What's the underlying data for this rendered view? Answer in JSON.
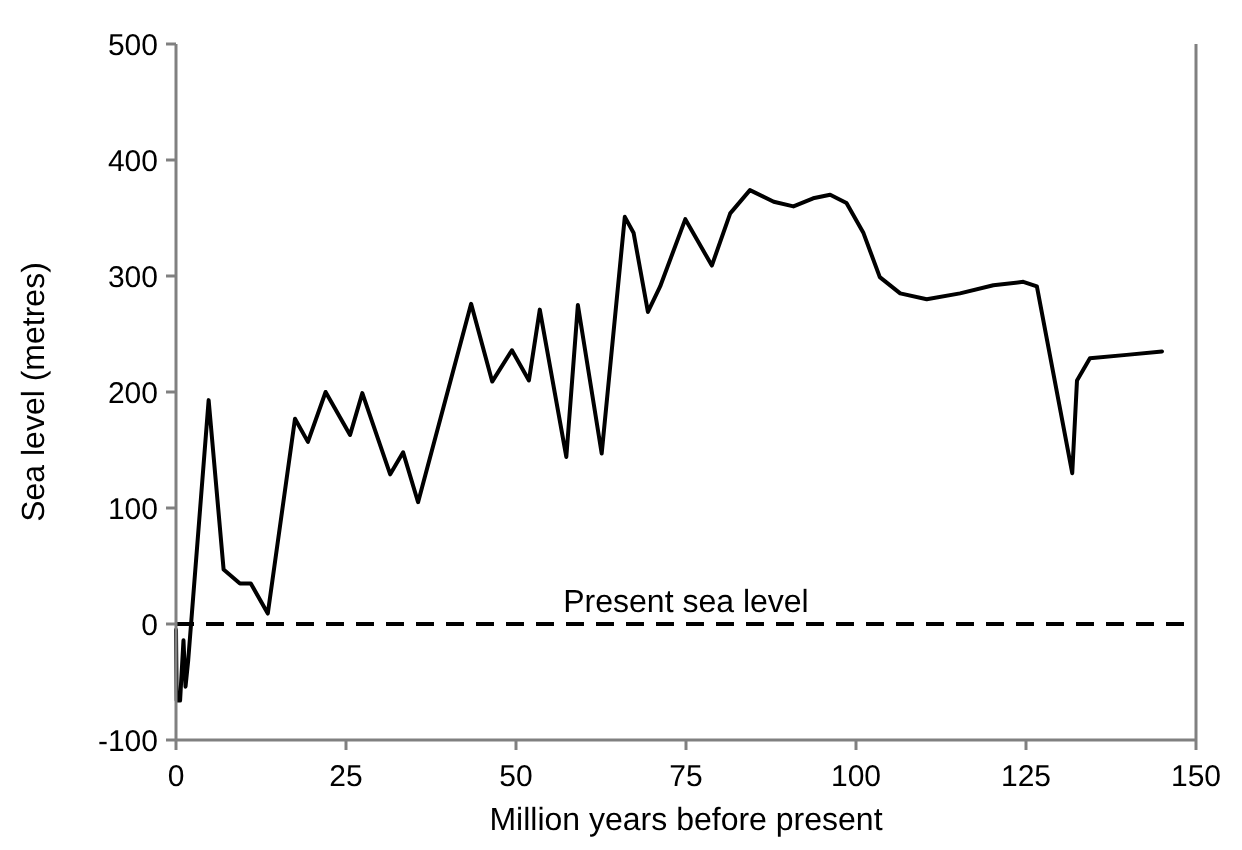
{
  "chart_data": {
    "type": "line",
    "xlabel": "Million years before present",
    "ylabel": "Sea level (metres)",
    "series": [
      {
        "color": "#000000",
        "x": [
          0,
          0.1,
          0.6,
          1.1,
          1.4,
          1.8,
          4.8,
          7,
          9.4,
          11,
          13.5,
          17.5,
          19.4,
          22,
          25.6,
          27.4,
          31.5,
          33.4,
          35.6,
          43.4,
          46.5,
          49.4,
          51.9,
          53.5,
          57.4,
          59.1,
          62.6,
          66,
          67.3,
          69.4,
          71.2,
          74.9,
          78.8,
          81.5,
          84.4,
          87.9,
          90.8,
          93.7,
          96.2,
          98.6,
          101.1,
          103.5,
          106.5,
          110.4,
          115.3,
          120.2,
          124.6,
          126.6,
          131.8,
          132.5,
          134.4,
          139.8,
          145
        ],
        "values": [
          -5,
          -66,
          -66,
          -14,
          -54,
          -31,
          193,
          47,
          35,
          35,
          9,
          177,
          157,
          200,
          163,
          199,
          129,
          148,
          105,
          276,
          209,
          236,
          210,
          271,
          144,
          275,
          147,
          351,
          337,
          269,
          291,
          349,
          309,
          354,
          374,
          364,
          360,
          367,
          370,
          363,
          337,
          299,
          285,
          280,
          285,
          292,
          295,
          291,
          130,
          210,
          229,
          232,
          235
        ]
      }
    ],
    "xlim": [
      0,
      150
    ],
    "xticks": [
      0,
      25,
      50,
      75,
      100,
      125,
      150
    ],
    "ylim": [
      -100,
      500
    ],
    "yticks": [
      -100,
      0,
      100,
      200,
      300,
      400,
      500
    ],
    "ref_lines": [
      {
        "axis": "y",
        "value": 0,
        "label": "Present sea level",
        "color": "#000000",
        "line_style": "dashed"
      }
    ],
    "grid": false,
    "marker": "none",
    "line_style": "solid"
  }
}
